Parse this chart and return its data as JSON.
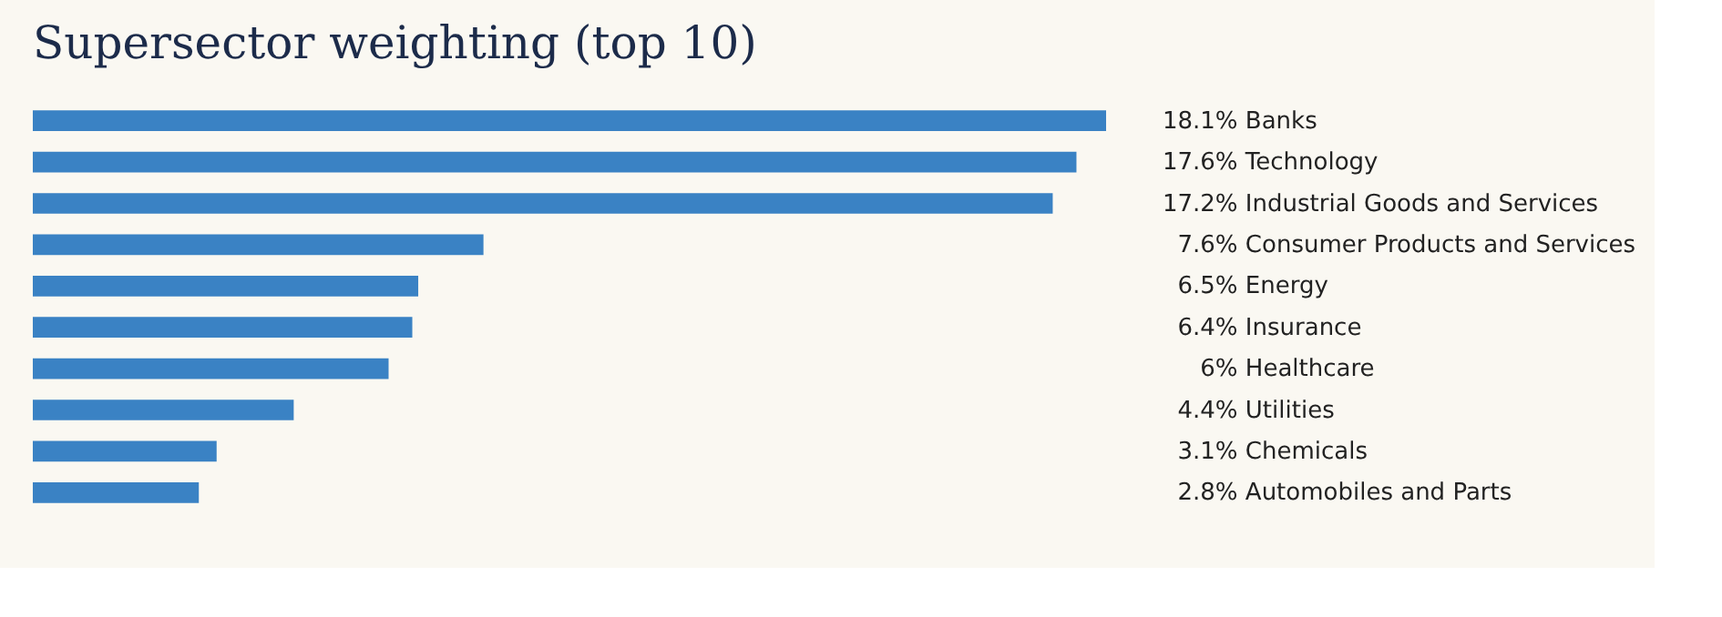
{
  "chart_data": {
    "type": "bar",
    "orientation": "horizontal",
    "title": "Supersector weighting (top 10)",
    "categories": [
      "Banks",
      "Technology",
      "Industrial Goods and Services",
      "Consumer Products and Services",
      "Energy",
      "Insurance",
      "Healthcare",
      "Utilities",
      "Chemicals",
      "Automobiles and Parts"
    ],
    "values": [
      18.1,
      17.6,
      17.2,
      7.6,
      6.5,
      6.4,
      6,
      4.4,
      3.1,
      2.8
    ],
    "value_labels": [
      "18.1%",
      "17.6%",
      "17.2%",
      "7.6%",
      "6.5%",
      "6.4%",
      "6%",
      "4.4%",
      "3.1%",
      "2.8%"
    ],
    "color": "#3a82c4",
    "grid": false
  }
}
